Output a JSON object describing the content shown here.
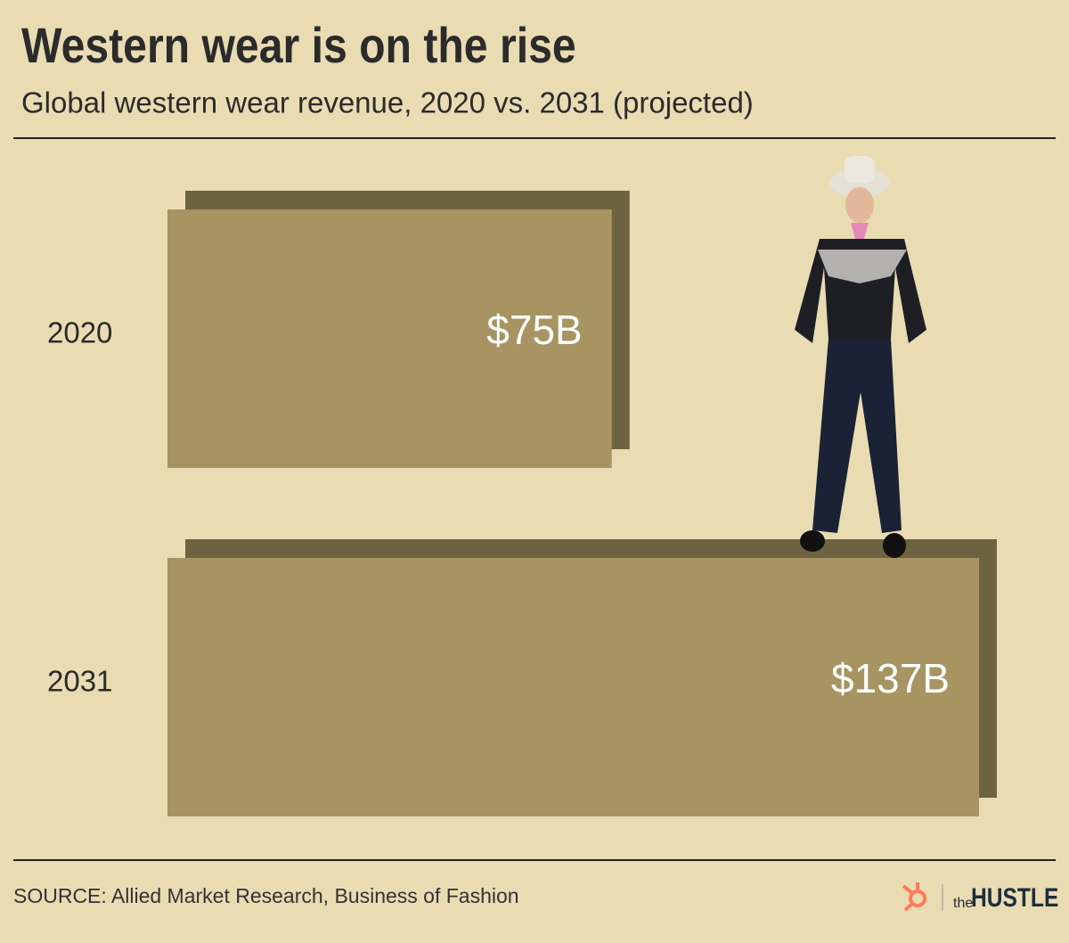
{
  "chart_data": {
    "type": "bar",
    "title": "Western wear is on the rise",
    "subtitle": "Global western wear revenue, 2020 vs. 2031 (projected)",
    "categories": [
      "2020",
      "2031"
    ],
    "values": [
      75,
      137
    ],
    "value_labels": [
      "$75B",
      "$137B"
    ],
    "color": "#a89462",
    "shadow_color": "#6e6340",
    "source": "SOURCE: Allied Market Research, Business of Fashion"
  },
  "brand": {
    "prefix": "the",
    "name": "HUSTLE"
  }
}
